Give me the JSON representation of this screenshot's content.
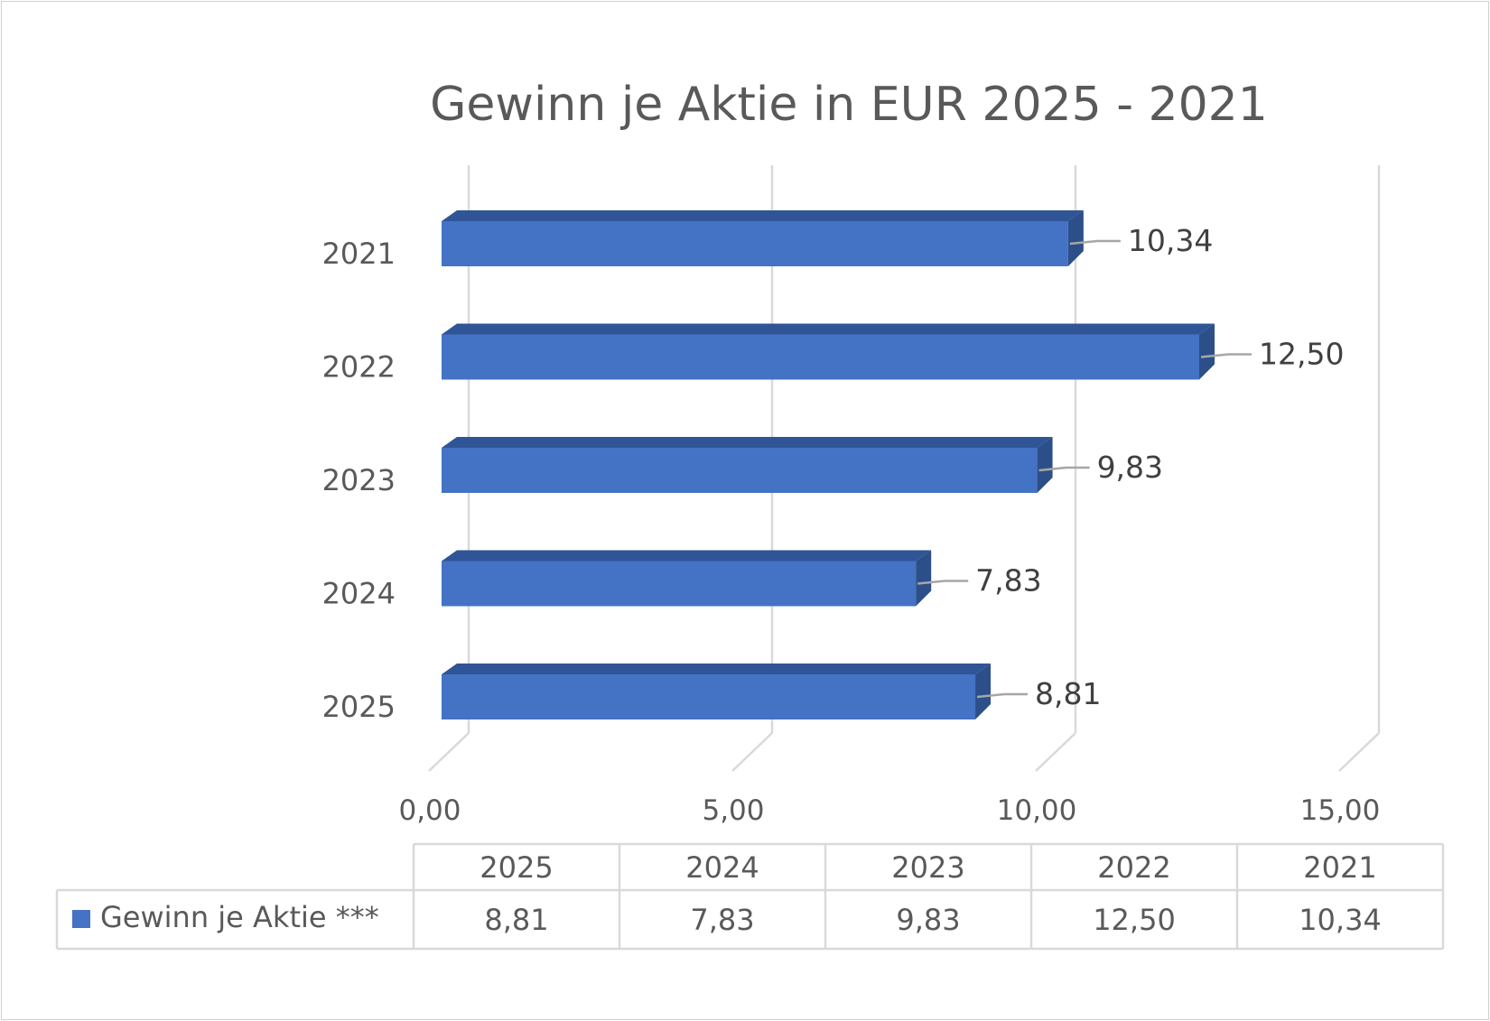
{
  "chart_data": {
    "type": "bar",
    "orientation": "horizontal",
    "three_d": true,
    "title": "Gewinn je Aktie in EUR 2025 - 2021",
    "categories": [
      "2025",
      "2024",
      "2023",
      "2022",
      "2021"
    ],
    "series": [
      {
        "name": "Gewinn je Aktie ***",
        "values": [
          8.81,
          7.83,
          9.83,
          12.5,
          10.34
        ],
        "labels": [
          "8,81",
          "7,83",
          "9,83",
          "12,50",
          "10,34"
        ],
        "color": "#4472c4"
      }
    ],
    "xlim": [
      0,
      15
    ],
    "x_ticks": [
      {
        "value": 0,
        "label": "0,00"
      },
      {
        "value": 5,
        "label": "5,00"
      },
      {
        "value": 10,
        "label": "10,00"
      },
      {
        "value": 15,
        "label": "15,00"
      }
    ],
    "grid": true,
    "data_table": true,
    "legend": "data-table"
  }
}
